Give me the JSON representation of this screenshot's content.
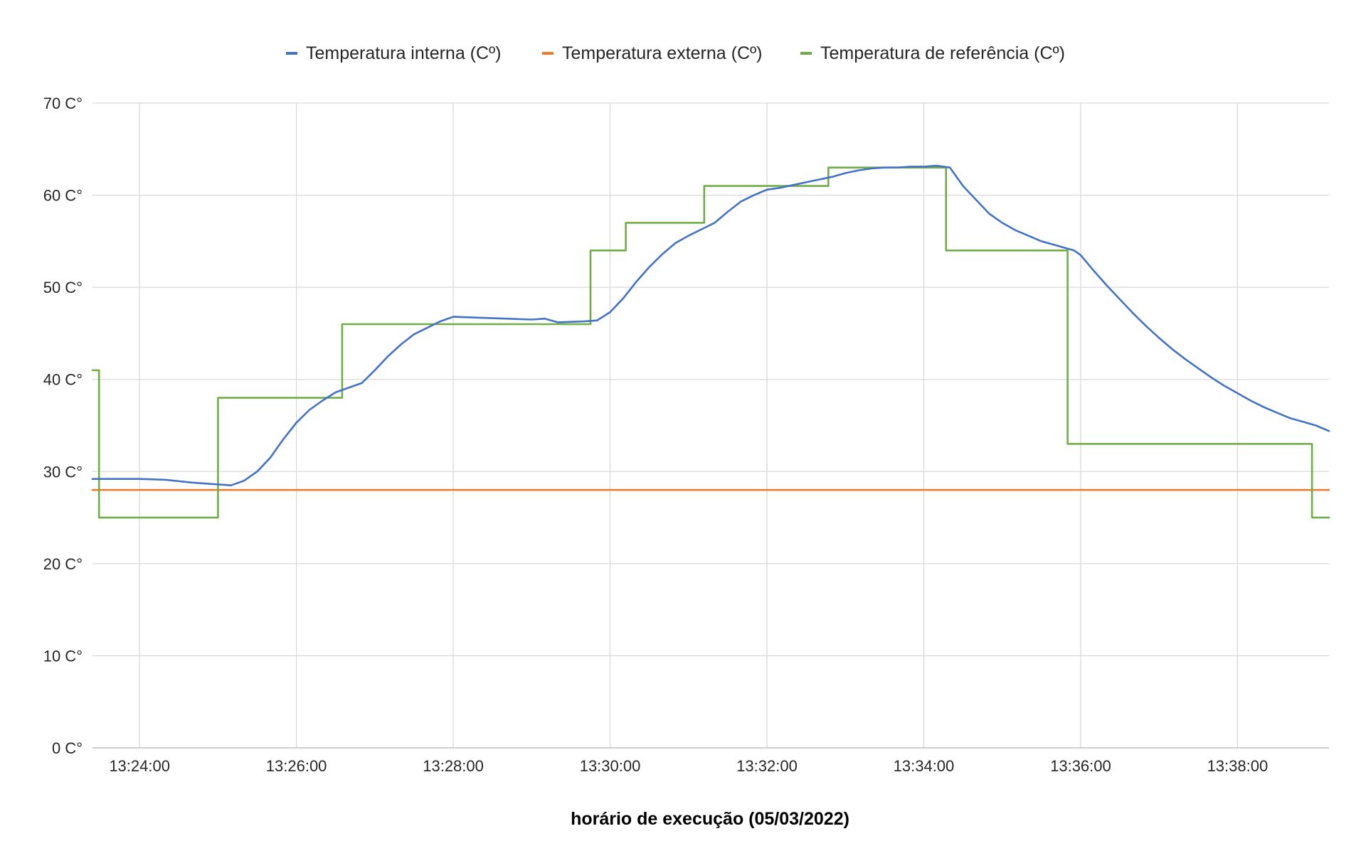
{
  "chart_data": {
    "type": "line",
    "title": "",
    "xlabel": "horário de execução (05/03/2022)",
    "ylabel": "",
    "ylim": [
      0,
      70
    ],
    "y_ticks": [
      "0 C°",
      "10 C°",
      "20 C°",
      "30 C°",
      "40 C°",
      "50 C°",
      "60 C°",
      "70 C°"
    ],
    "x_ticks": [
      "13:24:00",
      "13:26:00",
      "13:28:00",
      "13:30:00",
      "13:32:00",
      "13:34:00",
      "13:36:00",
      "13:38:00"
    ],
    "xlim": [
      "13:23:24",
      "13:39:10"
    ],
    "grid": true,
    "legend_position": "top",
    "series": [
      {
        "name": "Temperatura interna (Cº)",
        "color": "#4472C4",
        "points": [
          [
            "13:23:24",
            29.2
          ],
          [
            "13:23:40",
            29.2
          ],
          [
            "13:24:00",
            29.2
          ],
          [
            "13:24:20",
            29.1
          ],
          [
            "13:24:40",
            28.8
          ],
          [
            "13:25:00",
            28.6
          ],
          [
            "13:25:10",
            28.5
          ],
          [
            "13:25:20",
            29.0
          ],
          [
            "13:25:30",
            30.0
          ],
          [
            "13:25:40",
            31.5
          ],
          [
            "13:25:50",
            33.5
          ],
          [
            "13:26:00",
            35.3
          ],
          [
            "13:26:10",
            36.7
          ],
          [
            "13:26:20",
            37.7
          ],
          [
            "13:26:30",
            38.6
          ],
          [
            "13:26:40",
            39.1
          ],
          [
            "13:26:50",
            39.6
          ],
          [
            "13:27:00",
            41.0
          ],
          [
            "13:27:10",
            42.5
          ],
          [
            "13:27:20",
            43.8
          ],
          [
            "13:27:30",
            44.9
          ],
          [
            "13:27:40",
            45.6
          ],
          [
            "13:27:50",
            46.3
          ],
          [
            "13:28:00",
            46.8
          ],
          [
            "13:28:20",
            46.7
          ],
          [
            "13:28:40",
            46.6
          ],
          [
            "13:29:00",
            46.5
          ],
          [
            "13:29:10",
            46.6
          ],
          [
            "13:29:20",
            46.2
          ],
          [
            "13:29:40",
            46.3
          ],
          [
            "13:29:50",
            46.4
          ],
          [
            "13:30:00",
            47.3
          ],
          [
            "13:30:10",
            48.8
          ],
          [
            "13:30:20",
            50.6
          ],
          [
            "13:30:30",
            52.2
          ],
          [
            "13:30:40",
            53.6
          ],
          [
            "13:30:50",
            54.8
          ],
          [
            "13:31:00",
            55.6
          ],
          [
            "13:31:10",
            56.3
          ],
          [
            "13:31:20",
            57.0
          ],
          [
            "13:31:30",
            58.2
          ],
          [
            "13:31:40",
            59.3
          ],
          [
            "13:31:50",
            60.0
          ],
          [
            "13:32:00",
            60.6
          ],
          [
            "13:32:10",
            60.8
          ],
          [
            "13:32:20",
            61.1
          ],
          [
            "13:32:30",
            61.4
          ],
          [
            "13:32:40",
            61.7
          ],
          [
            "13:32:50",
            62.0
          ],
          [
            "13:33:00",
            62.4
          ],
          [
            "13:33:10",
            62.7
          ],
          [
            "13:33:20",
            62.9
          ],
          [
            "13:33:30",
            63.0
          ],
          [
            "13:33:40",
            63.0
          ],
          [
            "13:33:50",
            63.1
          ],
          [
            "13:34:00",
            63.1
          ],
          [
            "13:34:10",
            63.2
          ],
          [
            "13:34:20",
            63.0
          ],
          [
            "13:34:30",
            61.0
          ],
          [
            "13:34:40",
            59.5
          ],
          [
            "13:34:50",
            58.0
          ],
          [
            "13:35:00",
            57.0
          ],
          [
            "13:35:10",
            56.2
          ],
          [
            "13:35:20",
            55.6
          ],
          [
            "13:35:30",
            55.0
          ],
          [
            "13:35:40",
            54.6
          ],
          [
            "13:35:50",
            54.2
          ],
          [
            "13:35:55",
            54.0
          ],
          [
            "13:36:00",
            53.5
          ],
          [
            "13:36:10",
            51.8
          ],
          [
            "13:36:20",
            50.2
          ],
          [
            "13:36:30",
            48.7
          ],
          [
            "13:36:40",
            47.2
          ],
          [
            "13:36:50",
            45.8
          ],
          [
            "13:37:00",
            44.5
          ],
          [
            "13:37:10",
            43.3
          ],
          [
            "13:37:20",
            42.2
          ],
          [
            "13:37:30",
            41.2
          ],
          [
            "13:37:40",
            40.2
          ],
          [
            "13:37:50",
            39.3
          ],
          [
            "13:38:00",
            38.5
          ],
          [
            "13:38:10",
            37.7
          ],
          [
            "13:38:20",
            37.0
          ],
          [
            "13:38:30",
            36.4
          ],
          [
            "13:38:40",
            35.8
          ],
          [
            "13:38:50",
            35.4
          ],
          [
            "13:39:00",
            35.0
          ],
          [
            "13:39:10",
            34.4
          ]
        ]
      },
      {
        "name": "Temperatura externa (Cº)",
        "color": "#ED7D31",
        "points": [
          [
            "13:23:24",
            28.0
          ],
          [
            "13:39:10",
            28.0
          ]
        ]
      },
      {
        "name": "Temperatura de referência (Cº)",
        "color": "#70AD47",
        "step": true,
        "points": [
          [
            "13:23:24",
            41
          ],
          [
            "13:23:29",
            25
          ],
          [
            "13:25:00",
            38
          ],
          [
            "13:26:35",
            46
          ],
          [
            "13:29:45",
            54
          ],
          [
            "13:30:12",
            57
          ],
          [
            "13:31:12",
            61
          ],
          [
            "13:32:47",
            63
          ],
          [
            "13:34:17",
            54
          ],
          [
            "13:35:50",
            33
          ],
          [
            "13:38:57",
            25
          ],
          [
            "13:39:10",
            25
          ]
        ]
      }
    ]
  }
}
